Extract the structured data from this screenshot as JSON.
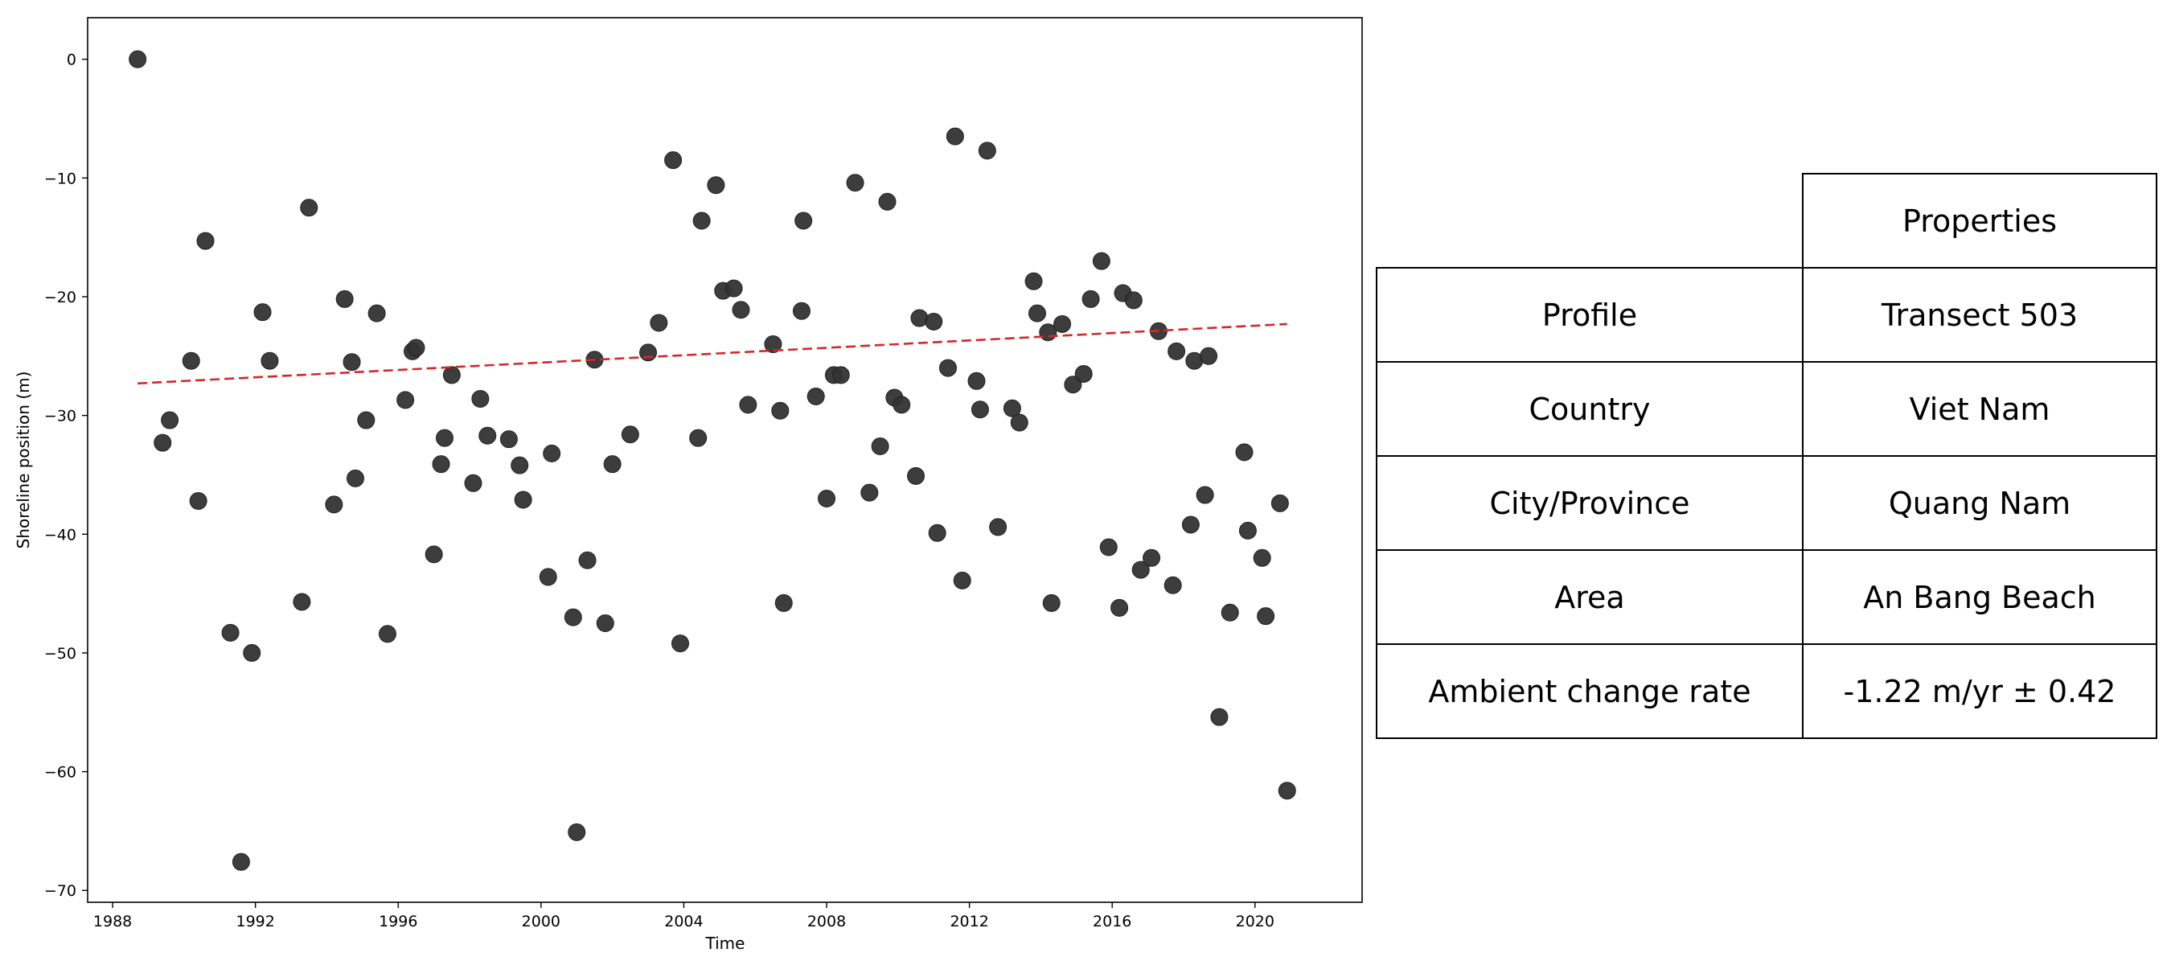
{
  "chart_data": {
    "type": "scatter",
    "title": "",
    "xlabel": "Time",
    "ylabel": "Shoreline position (m)",
    "xlim": [
      1987.3,
      2023.0
    ],
    "ylim": [
      -71.0,
      3.5
    ],
    "xticks": [
      1988,
      1992,
      1996,
      2000,
      2004,
      2008,
      2012,
      2016,
      2020
    ],
    "yticks": [
      0,
      -10,
      -20,
      -30,
      -40,
      -50,
      -60,
      -70
    ],
    "point_color": "#333333",
    "trend_color": "#d62728",
    "trend_line": {
      "x": [
        1988.7,
        2020.9
      ],
      "y": [
        -27.3,
        -22.3
      ],
      "style": "dashed"
    },
    "series": [
      {
        "x": [
          1988.7,
          1989.4,
          1989.6,
          1990.2,
          1990.4,
          1990.6,
          1991.3,
          1991.6,
          1991.9,
          1992.2,
          1992.4,
          1993.3,
          1993.5,
          1994.2,
          1994.5,
          1994.7,
          1994.8,
          1995.1,
          1995.4,
          1995.7,
          1996.2,
          1996.4,
          1996.5,
          1997.0,
          1997.2,
          1997.3,
          1997.5,
          1998.1,
          1998.3,
          1998.5,
          1999.1,
          1999.4,
          1999.5,
          2000.2,
          2000.3,
          2000.9,
          2001.0,
          2001.3,
          2001.5,
          2001.8,
          2002.0,
          2002.5,
          2003.0,
          2003.3,
          2003.7,
          2003.9,
          2004.4,
          2004.5,
          2004.9,
          2005.1,
          2005.4,
          2005.6,
          2005.8,
          2006.5,
          2006.7,
          2006.8,
          2007.3,
          2007.35,
          2007.7,
          2008.0,
          2008.2,
          2008.4,
          2008.8,
          2009.2,
          2009.5,
          2009.7,
          2009.9,
          2010.1,
          2010.5,
          2010.6,
          2011.0,
          2011.1,
          2011.4,
          2011.6,
          2011.8,
          2012.2,
          2012.3,
          2012.5,
          2012.8,
          2013.2,
          2013.4,
          2013.8,
          2013.9,
          2014.2,
          2014.3,
          2014.6,
          2014.9,
          2015.2,
          2015.4,
          2015.7,
          2015.9,
          2016.2,
          2016.3,
          2016.6,
          2016.8,
          2017.1,
          2017.3,
          2017.7,
          2017.8,
          2018.2,
          2018.3,
          2018.6,
          2018.7,
          2019.0,
          2019.3,
          2019.7,
          2019.8,
          2020.2,
          2020.3,
          2020.7,
          2020.9
        ],
        "y": [
          0,
          -32.3,
          -30.4,
          -25.4,
          -37.2,
          -15.3,
          -48.3,
          -67.6,
          -50.0,
          -21.3,
          -25.4,
          -45.7,
          -12.5,
          -37.5,
          -20.2,
          -25.5,
          -35.3,
          -30.4,
          -21.4,
          -48.4,
          -28.7,
          -24.6,
          -24.3,
          -41.7,
          -34.1,
          -31.9,
          -26.6,
          -35.7,
          -28.6,
          -31.7,
          -32.0,
          -34.2,
          -37.1,
          -43.6,
          -33.2,
          -47.0,
          -65.1,
          -42.2,
          -25.3,
          -47.5,
          -34.1,
          -31.6,
          -24.7,
          -22.2,
          -8.5,
          -49.2,
          -31.9,
          -13.6,
          -10.6,
          -19.5,
          -19.3,
          -21.1,
          -29.1,
          -24.0,
          -29.6,
          -45.8,
          -21.2,
          -13.6,
          -28.4,
          -37.0,
          -26.6,
          -26.6,
          -10.4,
          -36.5,
          -32.6,
          -12.0,
          -28.5,
          -29.1,
          -35.1,
          -21.8,
          -22.1,
          -39.9,
          -26.0,
          -6.5,
          -43.9,
          -27.1,
          -29.5,
          -7.7,
          -39.4,
          -29.4,
          -30.6,
          -18.7,
          -21.4,
          -23.0,
          -45.8,
          -22.3,
          -27.4,
          -26.5,
          -20.2,
          -17.0,
          -41.1,
          -46.2,
          -19.7,
          -20.3,
          -43.0,
          -42.0,
          -22.9,
          -44.3,
          -24.6,
          -39.2,
          -25.4,
          -36.7,
          -25.0,
          -55.4,
          -46.6,
          -33.1,
          -39.7,
          -42.0,
          -46.9,
          -37.4,
          -61.6
        ]
      }
    ]
  },
  "table": {
    "header": "Properties",
    "rows": [
      {
        "label": "Profile",
        "value": "Transect 503"
      },
      {
        "label": "Country",
        "value": "Viet Nam"
      },
      {
        "label": "City/Province",
        "value": "Quang Nam"
      },
      {
        "label": "Area",
        "value": "An Bang Beach"
      },
      {
        "label": "Ambient change rate",
        "value": "-1.22 m/yr ± 0.42"
      }
    ]
  }
}
